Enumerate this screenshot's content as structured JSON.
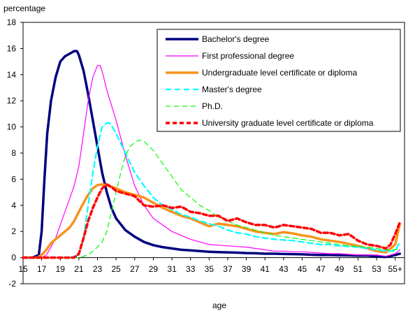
{
  "chart_data": {
    "type": "line",
    "ylabel": "percentage",
    "xlabel": "age",
    "xlim": [
      15,
      56
    ],
    "ylim": [
      -2,
      18
    ],
    "x_ticks": [
      {
        "value": 15,
        "label": "15"
      },
      {
        "value": 17,
        "label": "17"
      },
      {
        "value": 19,
        "label": "19"
      },
      {
        "value": 21,
        "label": "21"
      },
      {
        "value": 23,
        "label": "23"
      },
      {
        "value": 25,
        "label": "25"
      },
      {
        "value": 27,
        "label": "27"
      },
      {
        "value": 29,
        "label": "29"
      },
      {
        "value": 31,
        "label": "31"
      },
      {
        "value": 33,
        "label": "33"
      },
      {
        "value": 35,
        "label": "35"
      },
      {
        "value": 37,
        "label": "37"
      },
      {
        "value": 39,
        "label": "39"
      },
      {
        "value": 41,
        "label": "41"
      },
      {
        "value": 43,
        "label": "43"
      },
      {
        "value": 45,
        "label": "45"
      },
      {
        "value": 47,
        "label": "47"
      },
      {
        "value": 49,
        "label": "49"
      },
      {
        "value": 51,
        "label": "51"
      },
      {
        "value": 53,
        "label": "53"
      },
      {
        "value": 55,
        "label": "55+"
      }
    ],
    "y_ticks": [
      -2,
      0,
      2,
      4,
      6,
      8,
      10,
      12,
      14,
      16,
      18
    ],
    "grid": false,
    "legend_position": "top-right",
    "series": [
      {
        "name": "Bachelor's degree",
        "color": "#00007f",
        "dash": "solid",
        "x": [
          15,
          16,
          16.7,
          17,
          17.3,
          17.6,
          18,
          18.5,
          19,
          19.5,
          20,
          20.5,
          20.8,
          21,
          21.5,
          22,
          22.5,
          23,
          23.5,
          24,
          24.5,
          25,
          26,
          27,
          28,
          29,
          30,
          31,
          32,
          33,
          34,
          35,
          36,
          37,
          38,
          39,
          40,
          41,
          42,
          43,
          44,
          45,
          46,
          47,
          48,
          49,
          50,
          51,
          52,
          53,
          54,
          55,
          55.5
        ],
        "y": [
          0,
          0,
          0.2,
          2,
          6,
          9.5,
          12,
          13.8,
          15,
          15.4,
          15.6,
          15.8,
          15.8,
          15.5,
          14.3,
          12.5,
          10.5,
          8.5,
          6.5,
          5,
          3.8,
          3,
          2.1,
          1.6,
          1.2,
          0.95,
          0.8,
          0.7,
          0.6,
          0.55,
          0.5,
          0.45,
          0.42,
          0.4,
          0.38,
          0.35,
          0.33,
          0.3,
          0.3,
          0.28,
          0.27,
          0.25,
          0.22,
          0.2,
          0.2,
          0.18,
          0.17,
          0.15,
          0.15,
          0.1,
          0.05,
          0.2,
          0.3
        ]
      },
      {
        "name": "First professional degree",
        "color": "#ff00ff",
        "dash": "solid",
        "x": [
          15,
          16,
          17,
          17.5,
          18,
          18.5,
          19,
          19.5,
          20,
          20.5,
          21,
          21.5,
          22,
          22.5,
          23,
          23.3,
          23.6,
          24,
          25,
          26,
          27,
          28,
          29,
          30,
          31,
          32,
          33,
          34,
          35,
          36,
          37,
          38,
          39,
          40,
          41,
          42,
          43,
          44,
          45,
          46,
          47,
          48,
          49,
          50,
          51,
          52,
          53,
          54,
          55,
          55.5
        ],
        "y": [
          0,
          0,
          0,
          0.2,
          0.8,
          1.5,
          2.5,
          3.5,
          4.5,
          5.5,
          7,
          9.5,
          12,
          13.8,
          14.7,
          14.7,
          14,
          12.8,
          10.5,
          7.8,
          5.5,
          4,
          3,
          2.5,
          2,
          1.7,
          1.4,
          1.2,
          1,
          0.95,
          0.9,
          0.85,
          0.8,
          0.7,
          0.6,
          0.5,
          0.5,
          0.45,
          0.45,
          0.4,
          0.35,
          0.3,
          0.3,
          0.25,
          0.2,
          0.2,
          0.2,
          0.1,
          0.3,
          0.6
        ]
      },
      {
        "name": "Undergraduate level certificate or diploma",
        "color": "#f7941d",
        "dash": "solid",
        "x": [
          15,
          16,
          16.5,
          17,
          17.5,
          18,
          19,
          20,
          20.5,
          21,
          21.5,
          22,
          22.5,
          23,
          23.5,
          24,
          25,
          26,
          27,
          28,
          29,
          30,
          31,
          32,
          33,
          34,
          35,
          36,
          37,
          38,
          39,
          40,
          41,
          42,
          43,
          44,
          45,
          46,
          47,
          48,
          49,
          50,
          51,
          52,
          53,
          54,
          55,
          55.5
        ],
        "y": [
          0,
          0,
          0,
          0.2,
          0.6,
          1.1,
          1.7,
          2.3,
          2.8,
          3.5,
          4.2,
          4.8,
          5.3,
          5.55,
          5.6,
          5.55,
          5.3,
          5.0,
          4.8,
          4.6,
          4.2,
          3.8,
          3.5,
          3.2,
          3.0,
          2.7,
          2.4,
          2.6,
          2.5,
          2.4,
          2.2,
          2.0,
          1.9,
          1.8,
          1.95,
          1.85,
          1.7,
          1.6,
          1.4,
          1.3,
          1.2,
          1.05,
          0.9,
          0.7,
          0.5,
          0.4,
          1.0,
          2.6
        ]
      },
      {
        "name": "Master's degree",
        "color": "#00ffff",
        "dash": "dashed",
        "x": [
          15,
          16,
          17,
          18,
          19,
          20,
          21,
          21.5,
          22,
          22.5,
          23,
          23.5,
          24,
          24.3,
          24.6,
          25,
          26,
          27,
          28,
          29,
          30,
          31,
          32,
          33,
          34,
          35,
          36,
          37,
          38,
          39,
          40,
          41,
          42,
          43,
          44,
          45,
          46,
          47,
          48,
          49,
          50,
          51,
          52,
          53,
          54,
          55,
          55.5
        ],
        "y": [
          0,
          0,
          0,
          0,
          0,
          0,
          0.2,
          1.5,
          4,
          6.5,
          8.5,
          10,
          10.3,
          10.3,
          10,
          9.5,
          8,
          6.5,
          5.5,
          4.6,
          4,
          3.7,
          3.3,
          3.1,
          2.8,
          2.6,
          2.4,
          2.1,
          1.9,
          1.8,
          1.6,
          1.5,
          1.4,
          1.35,
          1.3,
          1.2,
          1.1,
          1.0,
          1.0,
          0.9,
          0.85,
          0.8,
          0.7,
          0.6,
          0.5,
          0.5,
          1.2
        ]
      },
      {
        "name": "Ph.D.",
        "color": "#00ff00",
        "dash": "dashed",
        "x": [
          15,
          16,
          17,
          18,
          19,
          20,
          21,
          22,
          23,
          23.5,
          24,
          24.5,
          25,
          25.5,
          26,
          26.5,
          27,
          27.5,
          28,
          29,
          30,
          31,
          32,
          33,
          34,
          35,
          36,
          37,
          38,
          39,
          40,
          41,
          42,
          43,
          44,
          45,
          46,
          47,
          48,
          49,
          50,
          51,
          52,
          53,
          54,
          55,
          55.5
        ],
        "y": [
          0,
          0,
          0,
          0,
          0,
          0,
          0,
          0.2,
          0.8,
          1.2,
          2,
          3.5,
          5,
          6.5,
          7.8,
          8.5,
          8.8,
          9,
          8.9,
          8.2,
          7.2,
          6.2,
          5.2,
          4.6,
          4,
          3.6,
          3.1,
          2.8,
          2.5,
          2.3,
          2.1,
          1.9,
          1.7,
          1.6,
          1.5,
          1.4,
          1.3,
          1.2,
          1.1,
          1.0,
          0.9,
          0.85,
          0.8,
          0.7,
          0.6,
          0.6,
          0.7
        ]
      },
      {
        "name": "University graduate level certificate or diploma",
        "color": "#ff0000",
        "dash": "dashed",
        "x": [
          15,
          16,
          17,
          18,
          19,
          20,
          20.5,
          21,
          21.5,
          22,
          22.5,
          23,
          23.5,
          24,
          24.5,
          25,
          26,
          27,
          28,
          29,
          30,
          31,
          32,
          33,
          34,
          35,
          36,
          37,
          38,
          39,
          40,
          41,
          42,
          43,
          44,
          45,
          46,
          47,
          48,
          49,
          50,
          51,
          52,
          53,
          54,
          54.5,
          55,
          55.5
        ],
        "y": [
          0,
          0,
          0,
          0,
          0,
          0,
          0,
          0.3,
          1.5,
          2.8,
          3.8,
          4.6,
          5.3,
          5.6,
          5.4,
          5.1,
          4.9,
          4.7,
          4.0,
          3.9,
          4.0,
          3.8,
          3.9,
          3.5,
          3.4,
          3.2,
          3.2,
          2.8,
          3.0,
          2.7,
          2.5,
          2.5,
          2.3,
          2.5,
          2.4,
          2.3,
          2.2,
          1.9,
          1.9,
          1.7,
          1.8,
          1.3,
          1.0,
          0.9,
          0.7,
          1.0,
          1.8,
          2.7
        ]
      }
    ]
  }
}
